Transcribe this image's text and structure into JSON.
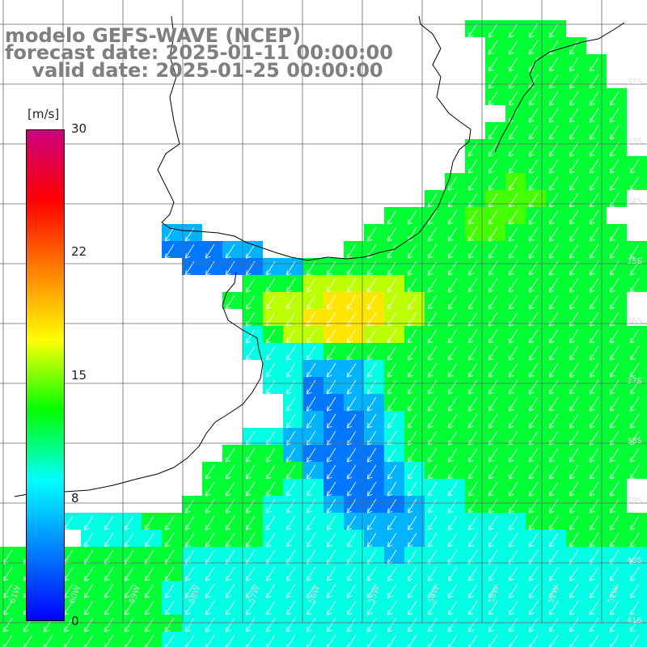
{
  "title": {
    "line1": "modelo GEFS-WAVE (NCEP)",
    "line2": "forecast date: 2025-01-11 00:00:00",
    "line3": "    valid date: 2025-01-25 00:00:00"
  },
  "colorbar": {
    "unit": "[m/s]",
    "ticks": [
      "30",
      "22",
      "15",
      "8",
      "0"
    ],
    "min": 0,
    "max": 30,
    "colors": [
      "#0000ff",
      "#0080ff",
      "#00ffff",
      "#00ff00",
      "#ffff00",
      "#ff8000",
      "#ff0000",
      "#cc0080"
    ]
  },
  "grid": {
    "lat_labels": [
      "32S",
      "33S",
      "34S",
      "35S",
      "36S",
      "37S",
      "38S",
      "39S",
      "40S",
      "41S"
    ],
    "lon_labels": [
      "61W",
      "60W",
      "59W",
      "58W",
      "57W",
      "56W",
      "55W",
      "54W",
      "53W",
      "52W",
      "51W",
      "50W"
    ]
  },
  "wind_field": {
    "rows": [
      "                       ggggg    ",
      "                        ggggg   ",
      "                        gggggg  ",
      "                        gggggg  ",
      "                        ggggggg ",
      "                         gggggg ",
      "                        ggggggg ",
      "                       gggggggg ",
      "                       ggggggggg",
      "                      gggGgggggg",
      "                     gggGGGgggg ",
      "                   ggggGGGgggg  ",
      "        bb        gggggGGgggggg ",
      "        BBBbb    ggggggggggggggg",
      "         BBBBbbggggggggggggggggg",
      "            gggYYYYYgggggggggggg",
      "           ggYYYOOOYYgggggggggg ",
      "            gYYOOOOYYgggggggggg ",
      "            cgYYOOYYgggggggggggg",
      "            ccccggggggggggggggggg",
      "             ccbbbcgggggggggggggg",
      "             ccBbbcggggggggggggg",
      "              cBBbbgggggggggggggg",
      "              cbBBbcggggggggggggg",
      "            ccbbBBbcgggggggggggg",
      "           gggbBBBBcgggggggggggg",
      "          gggggbBBBbcggggggggggg",
      "          ggggccBBBbcccgggggggg",
      "         ggggcccbBBBbccgggggggg",
      "   ccccggggggccccbbbbcccccgggggg",
      "    ccccgggggcccccbbbcccccccggggg",
      "gggggggggccccccccccbcccccccccccc",
      "gggggggggccccccccccccccccccccccc",
      "ggggggggcccccccccccccccccccccccc",
      "ggggggggcccccccccccccccccccccccc",
      "gggggggggccccccccccccccccccccccc",
      "ggggggggcccccccccccccccccccccccc"
    ],
    "legend_key": {
      "B": 4,
      "b": 6,
      "c": 9,
      "g": 12,
      "G": 14,
      "Y": 16,
      "O": 18
    }
  }
}
